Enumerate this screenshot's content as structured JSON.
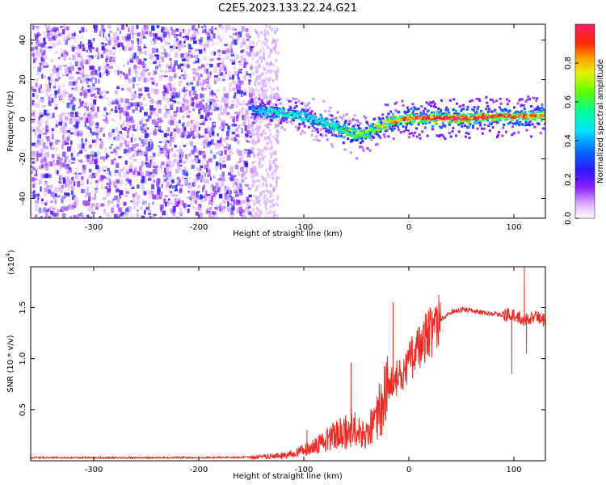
{
  "title": "C2E5.2023.133.22.24.G21",
  "colors": {
    "signal": "#ee2a24",
    "axis": "#000000",
    "background": "#ffffff",
    "noise_hue": "#7a00ff"
  },
  "chart_data": [
    {
      "type": "heatmap",
      "name": "spectrogram",
      "title": "C2E5.2023.133.22.24.G21",
      "xlabel": "Height of straight line (km)",
      "ylabel": "Frequency (Hz)",
      "xlim": [
        -360,
        130
      ],
      "ylim": [
        -50,
        48
      ],
      "xticks": [
        -300,
        -200,
        -100,
        0,
        100
      ],
      "yticks": [
        -40,
        -20,
        0,
        20,
        40
      ],
      "xtick_labels": [
        "-300",
        "-200",
        "-100",
        "0",
        "100"
      ],
      "ytick_labels": [
        "-40",
        "-20",
        "0",
        "20",
        "40"
      ],
      "colorbar": {
        "label": "Normalized spectral amplitude",
        "range": [
          0,
          1
        ],
        "ticks": [
          0.0,
          0.2,
          0.4,
          0.6,
          0.8
        ],
        "tick_labels": [
          "0.0",
          "0.2",
          "0.4",
          "0.6",
          "0.8"
        ]
      },
      "ridge": {
        "description": "carrier frequency trace",
        "x": [
          -150,
          -130,
          -110,
          -95,
          -80,
          -70,
          -60,
          -50,
          -40,
          -30,
          -20,
          -10,
          0,
          20,
          40,
          60,
          80,
          100,
          120,
          130
        ],
        "frequency": [
          5,
          4,
          3,
          1,
          -2,
          -4,
          -6,
          -8,
          -6,
          -3,
          -1,
          0,
          1,
          1,
          1,
          1,
          2,
          2,
          2,
          2
        ],
        "amplitude": [
          0.35,
          0.5,
          0.5,
          0.45,
          0.5,
          0.55,
          0.6,
          0.6,
          0.65,
          0.7,
          0.75,
          0.8,
          0.85,
          0.95,
          0.95,
          0.9,
          0.9,
          0.85,
          0.8,
          0.8
        ]
      },
      "noise_region": {
        "x_from": -360,
        "x_to": -150,
        "amplitude_range": [
          0.05,
          0.3
        ]
      }
    },
    {
      "type": "line",
      "name": "snr",
      "xlabel": "Height of straight line (km)",
      "ylabel": "SNR (10 * v/v)",
      "yscale_label": "(x10",
      "yscale_exponent": "4",
      "yscale_close": ")",
      "xlim": [
        -360,
        130
      ],
      "ylim": [
        0,
        19000
      ],
      "xticks": [
        -300,
        -200,
        -100,
        0,
        100
      ],
      "yticks": [
        5000,
        10000,
        15000
      ],
      "xtick_labels": [
        "-300",
        "-200",
        "-100",
        "0",
        "100"
      ],
      "ytick_labels": [
        "0.5",
        "1.0",
        "1.5"
      ],
      "series": [
        {
          "name": "SNR",
          "x": [
            -360,
            -300,
            -250,
            -200,
            -150,
            -120,
            -100,
            -90,
            -80,
            -70,
            -60,
            -50,
            -45,
            -40,
            -35,
            -30,
            -25,
            -20,
            -15,
            -10,
            -5,
            0,
            10,
            20,
            30,
            40,
            50,
            60,
            70,
            80,
            90,
            100,
            105,
            110,
            115,
            120,
            130
          ],
          "values": [
            300,
            300,
            300,
            300,
            350,
            500,
            1000,
            1500,
            2000,
            2500,
            2800,
            3000,
            2500,
            2500,
            3500,
            4500,
            5500,
            7000,
            7800,
            8200,
            9000,
            9500,
            11500,
            12800,
            13800,
            14600,
            14800,
            14700,
            14500,
            14400,
            14300,
            14200,
            14100,
            13800,
            14000,
            14000,
            13800
          ]
        }
      ],
      "spikes": [
        {
          "x": -97,
          "value": 3000
        },
        {
          "x": -55,
          "value": 9600
        },
        {
          "x": -15,
          "value": 15500
        },
        {
          "x": 98,
          "value": 8500
        },
        {
          "x": 110,
          "value": 19000
        },
        {
          "x": 112,
          "value": 10500
        }
      ]
    }
  ]
}
